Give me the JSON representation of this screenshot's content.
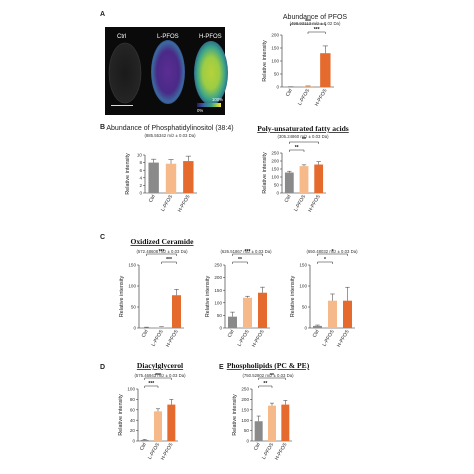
{
  "panels": {
    "A": "A",
    "B": "B",
    "C": "C",
    "D": "D",
    "E": "E"
  },
  "imaging": {
    "labels": [
      "Ctrl",
      "L-PFOS",
      "H-PFOS"
    ],
    "scale_top": "100%",
    "scale_bottom": "0%"
  },
  "colors": {
    "ctrl": "#8a8a8a",
    "lpfos": "#f5b98a",
    "hpfos": "#e46a2e",
    "error": "#555555"
  },
  "chart_data": [
    {
      "id": "pfos",
      "type": "bar",
      "title": "Abundance of PFOS",
      "subtitle": "(498.93113 m/z ± 0.02 Da)",
      "title_style": "plain",
      "ylabel": "Relative intensity",
      "categories": [
        "Ctrl",
        "L-PFOS",
        "H-PFOS"
      ],
      "values": [
        0.5,
        3,
        130
      ],
      "errors": [
        0.5,
        1,
        28
      ],
      "ylim": [
        0,
        200
      ],
      "yticks": [
        "0",
        "50",
        "100",
        "150",
        "200"
      ],
      "sig": [
        {
          "from": 0,
          "to": 2,
          "label": "***"
        },
        {
          "from": 1,
          "to": 2,
          "label": "***"
        }
      ]
    },
    {
      "id": "pi",
      "type": "bar",
      "title": "Abundance of Phosphatidylinositol (38:4)",
      "subtitle": "(885.55342 m/z ± 0.03 Da)",
      "title_style": "plain",
      "ylabel": "Relative intensity",
      "categories": [
        "Ctrl",
        "L-PFOS",
        "H-PFOS"
      ],
      "values": [
        8,
        7.7,
        8.4
      ],
      "errors": [
        0.9,
        1.1,
        1.3
      ],
      "ylim": [
        0,
        10
      ],
      "yticks": [
        "0",
        "2",
        "4",
        "6",
        "8",
        "10"
      ],
      "sig": []
    },
    {
      "id": "pufa",
      "type": "bar",
      "title": "Poly-unsaturated fatty acids",
      "subtitle": "(305.24860 m/z ± 0.03 Da)",
      "title_style": "serif",
      "ylabel": "Relative intensity",
      "categories": [
        "Ctrl",
        "L-PFOS",
        "H-PFOS"
      ],
      "values": [
        128,
        168,
        178
      ],
      "errors": [
        8,
        8,
        18
      ],
      "ylim": [
        0,
        250
      ],
      "yticks": [
        "0",
        "50",
        "100",
        "150",
        "200",
        "250"
      ],
      "sig": [
        {
          "from": 0,
          "to": 2,
          "label": "**"
        },
        {
          "from": 0,
          "to": 1,
          "label": "**"
        }
      ]
    },
    {
      "id": "oc1",
      "type": "bar",
      "title": "Oxidized Ceramide",
      "subtitle": "(572.48608 m/z ± 0.03 Da)",
      "title_style": "serif",
      "ylabel": "Relative intensity",
      "categories": [
        "Ctrl",
        "L-PFOS",
        "H-PFOS"
      ],
      "values": [
        1,
        2,
        78
      ],
      "errors": [
        1,
        1,
        14
      ],
      "ylim": [
        0,
        150
      ],
      "yticks": [
        "0",
        "50",
        "100",
        "150"
      ],
      "sig": [
        {
          "from": 0,
          "to": 2,
          "label": "***"
        },
        {
          "from": 1,
          "to": 2,
          "label": "***"
        }
      ]
    },
    {
      "id": "oc2",
      "type": "bar",
      "title": "",
      "subtitle": "(626.51867 m/z ± 0.03 Da)",
      "title_style": "plain",
      "ylabel": "Relative intensity",
      "categories": [
        "Ctrl",
        "L-PFOS",
        "H-PFOS"
      ],
      "values": [
        45,
        120,
        140
      ],
      "errors": [
        18,
        6,
        22
      ],
      "ylim": [
        0,
        250
      ],
      "yticks": [
        "0",
        "50",
        "100",
        "150",
        "200",
        "250"
      ],
      "sig": [
        {
          "from": 0,
          "to": 2,
          "label": "***"
        },
        {
          "from": 0,
          "to": 1,
          "label": "**"
        }
      ]
    },
    {
      "id": "oc3",
      "type": "bar",
      "title": "",
      "subtitle": "(650.48032 m/z ± 0.03 Da)",
      "title_style": "plain",
      "ylabel": "Relative intensity",
      "categories": [
        "Ctrl",
        "L-PFOS",
        "H-PFOS"
      ],
      "values": [
        5,
        65,
        65
      ],
      "errors": [
        2,
        16,
        32
      ],
      "ylim": [
        0,
        150
      ],
      "yticks": [
        "0",
        "50",
        "100",
        "150"
      ],
      "sig": [
        {
          "from": 0,
          "to": 2,
          "label": "*"
        },
        {
          "from": 0,
          "to": 1,
          "label": "*"
        }
      ]
    },
    {
      "id": "dag",
      "type": "bar",
      "title": "Diacylglycerol",
      "subtitle": "(575.46943 m/z ± 0.03 Da)",
      "title_style": "serif",
      "ylabel": "Relative intensity",
      "categories": [
        "Ctrl",
        "L-PFOS",
        "H-PFOS"
      ],
      "values": [
        2,
        57,
        70
      ],
      "errors": [
        1,
        5,
        10
      ],
      "ylim": [
        0,
        100
      ],
      "yticks": [
        "0",
        "20",
        "40",
        "60",
        "80",
        "100"
      ],
      "sig": [
        {
          "from": 0,
          "to": 2,
          "label": "***"
        },
        {
          "from": 0,
          "to": 1,
          "label": "***"
        }
      ]
    },
    {
      "id": "pcpe",
      "type": "bar",
      "title": "Phospholipids (PC & PE)",
      "subtitle": "(750.52802 m/z ± 0.03 Da)",
      "title_style": "serif",
      "ylabel": "Relative intensity",
      "categories": [
        "Ctrl",
        "L-PFOS",
        "H-PFOS"
      ],
      "values": [
        95,
        170,
        175
      ],
      "errors": [
        25,
        12,
        20
      ],
      "ylim": [
        0,
        250
      ],
      "yticks": [
        "0",
        "50",
        "100",
        "150",
        "200",
        "250"
      ],
      "sig": [
        {
          "from": 0,
          "to": 2,
          "label": "**"
        },
        {
          "from": 0,
          "to": 1,
          "label": "**"
        }
      ]
    }
  ]
}
